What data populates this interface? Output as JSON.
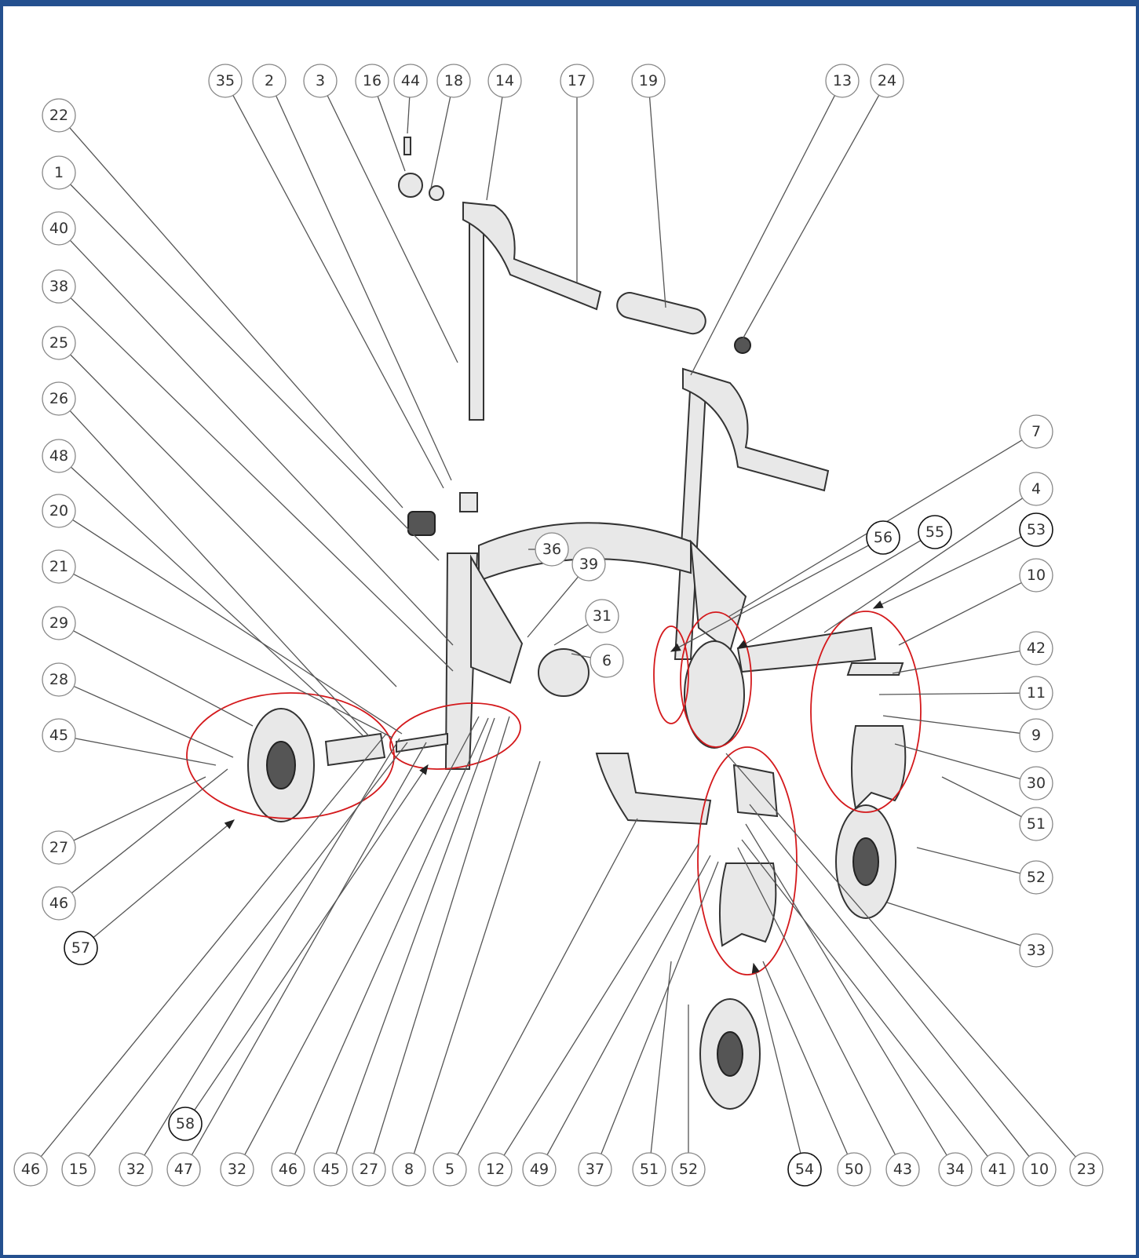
{
  "balloons": [
    "35",
    "2",
    "3",
    "16",
    "44",
    "18",
    "14",
    "17",
    "19",
    "13",
    "24",
    "22",
    "1",
    "40",
    "38",
    "25",
    "26",
    "48",
    "20",
    "21",
    "29",
    "28",
    "45",
    "27",
    "46",
    "57",
    "7",
    "4",
    "53",
    "10",
    "42",
    "11",
    "9",
    "30",
    "51",
    "52",
    "33",
    "56",
    "55",
    "36",
    "39",
    "31",
    "6",
    "46",
    "15",
    "32",
    "47",
    "58",
    "32",
    "46",
    "45",
    "27",
    "8",
    "5",
    "12",
    "49",
    "37",
    "51",
    "52",
    "54",
    "50",
    "43",
    "34",
    "41",
    "10",
    "23"
  ]
}
